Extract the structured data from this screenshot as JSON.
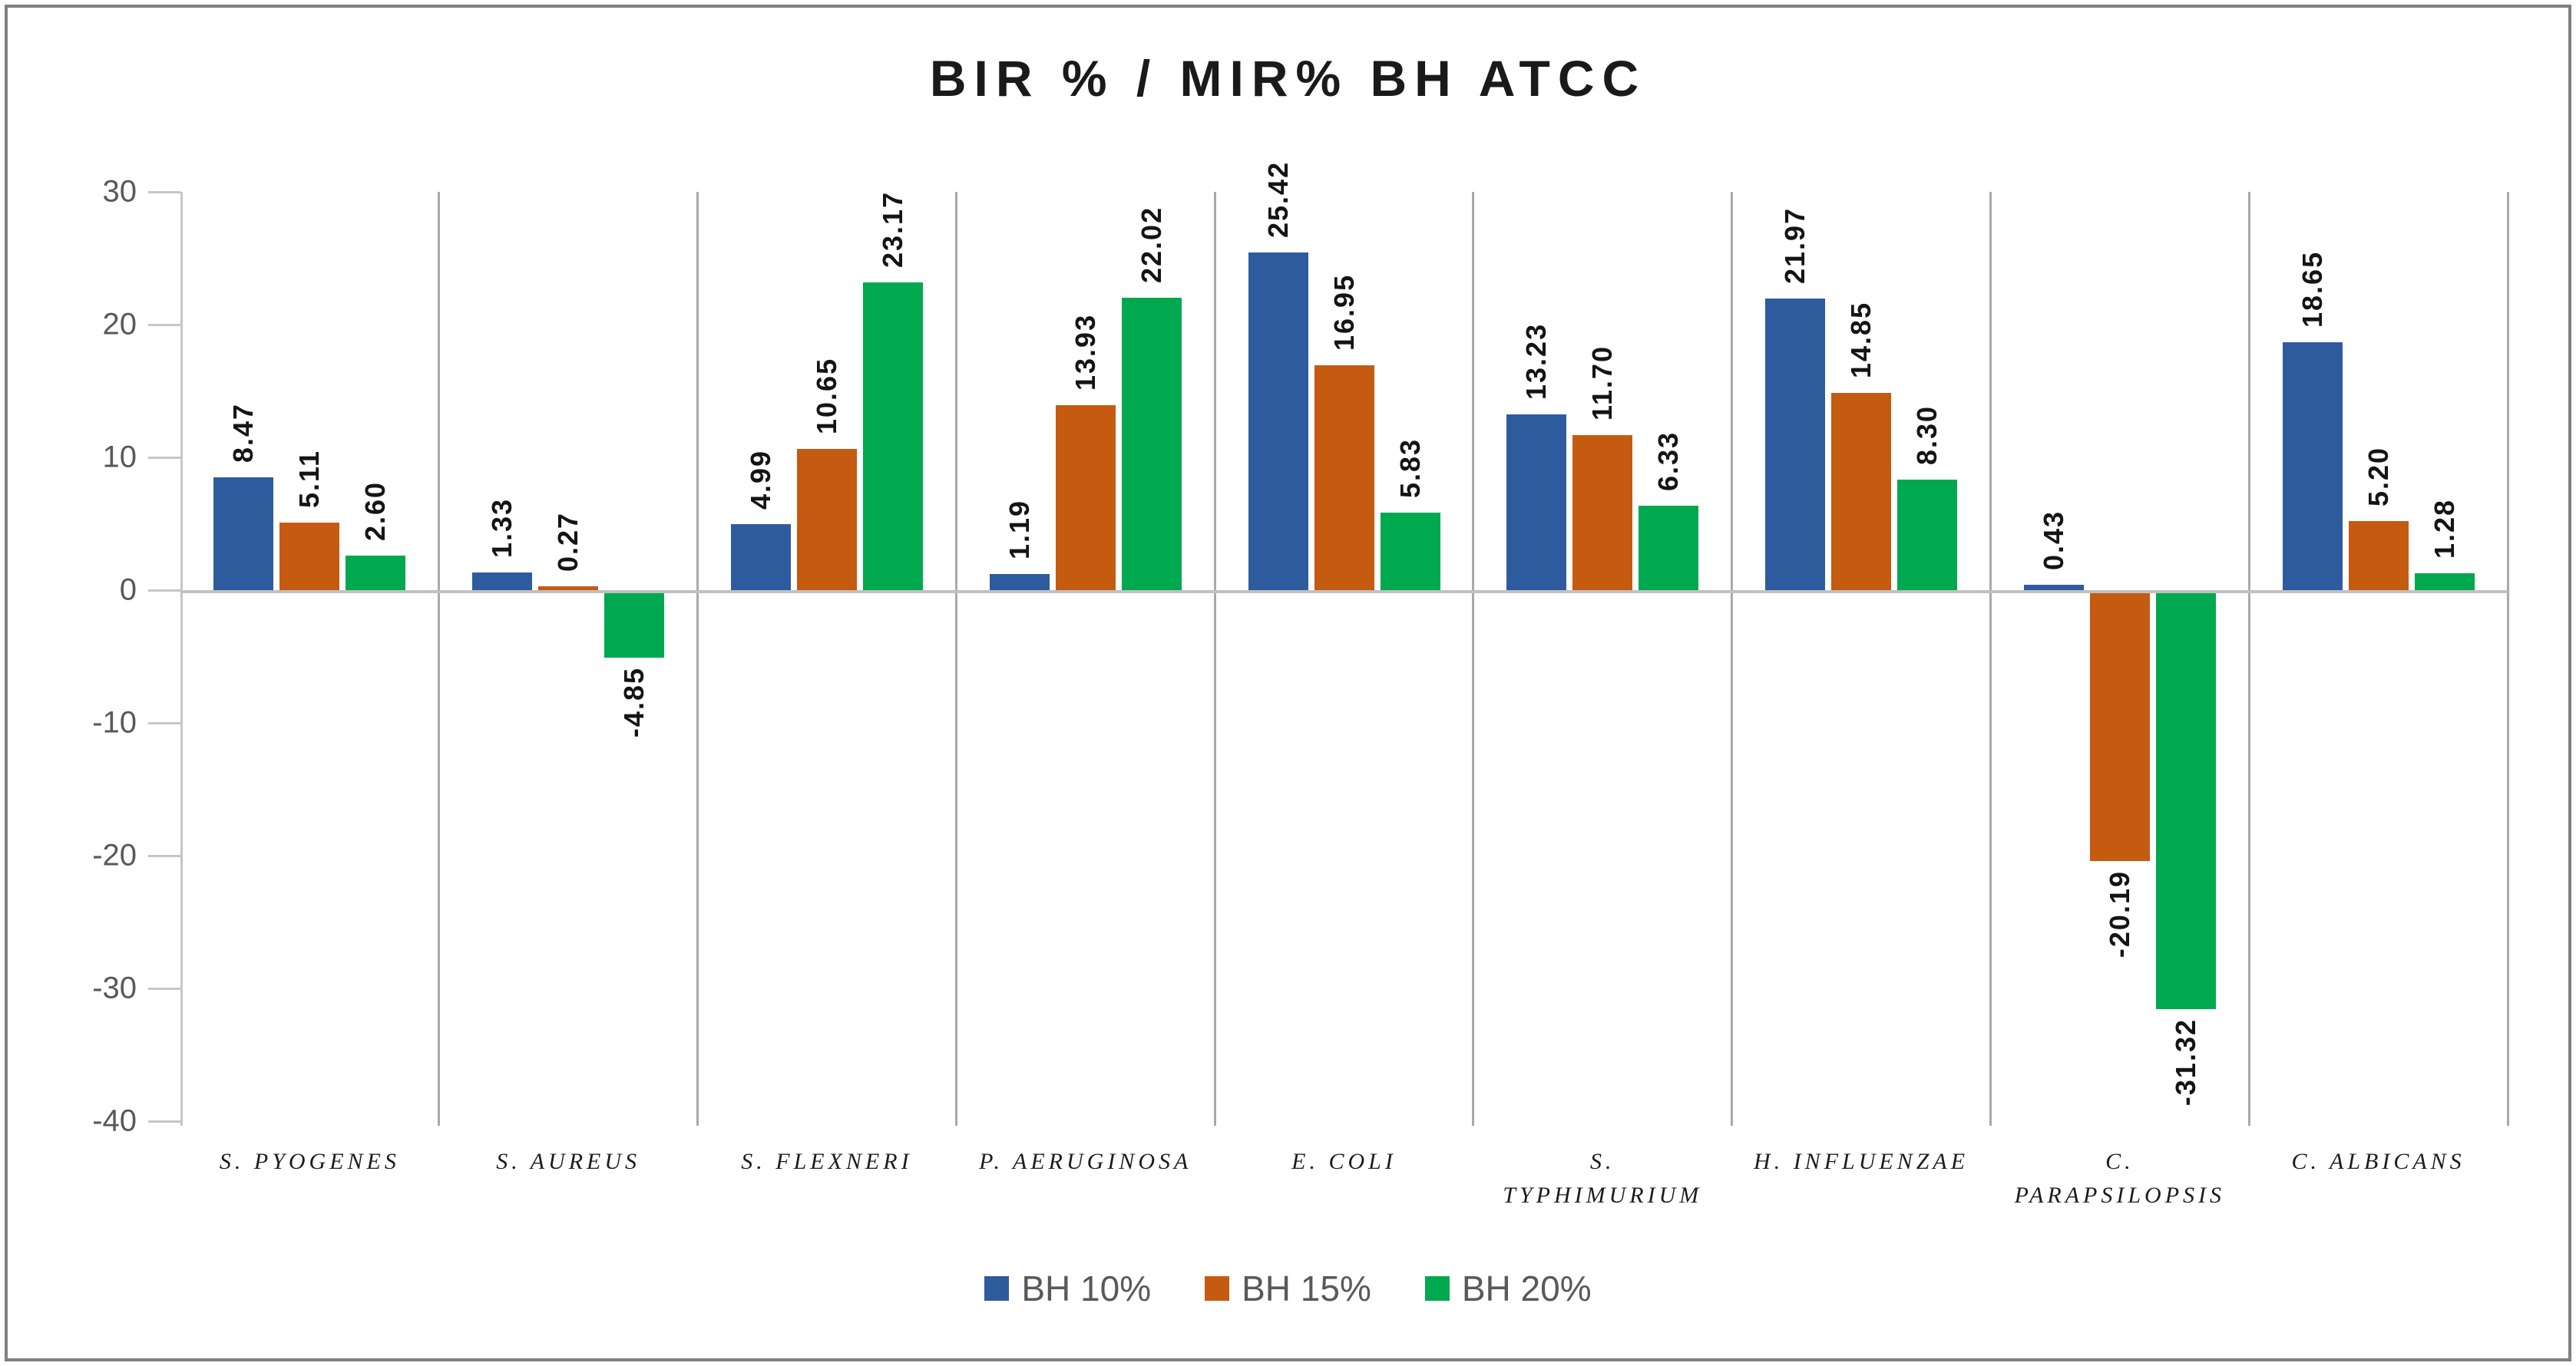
{
  "title": "BIR % / MIR% BH ATCC",
  "chart_data": {
    "type": "bar",
    "title": "BIR % / MIR% BH ATCC",
    "grid": "vertical-category-separators",
    "legend_position": "bottom",
    "categories": [
      {
        "label": "S. PYOGENES",
        "lines": [
          "S. PYOGENES"
        ]
      },
      {
        "label": "S. AUREUS",
        "lines": [
          "S. AUREUS"
        ]
      },
      {
        "label": "S. FLEXNERI",
        "lines": [
          "S. FLEXNERI"
        ]
      },
      {
        "label": "P. AERUGINOSA",
        "lines": [
          "P. AERUGINOSA"
        ]
      },
      {
        "label": "E. COLI",
        "lines": [
          "E. COLI"
        ]
      },
      {
        "label": "S. TYPHIMURIUM",
        "lines": [
          "S.",
          "TYPHIMURIUM"
        ]
      },
      {
        "label": "H. INFLUENZAE",
        "lines": [
          "H. INFLUENZAE"
        ]
      },
      {
        "label": "C. PARAPSILOPSIS",
        "lines": [
          "C.",
          "PARAPSILOPSIS"
        ]
      },
      {
        "label": "C. ALBICANS",
        "lines": [
          "C. ALBICANS"
        ]
      }
    ],
    "series": [
      {
        "name": "BH 10%",
        "color": "#2E5B9E",
        "values": [
          8.47,
          1.33,
          4.99,
          1.19,
          25.42,
          13.23,
          21.97,
          0.43,
          18.65
        ],
        "labels": [
          "8.47",
          "1.33",
          "4.99",
          "1.19",
          "25.42",
          "13.23",
          "21.97",
          "0.43",
          "18.65"
        ]
      },
      {
        "name": "BH 15%",
        "color": "#C55A11",
        "values": [
          5.11,
          0.27,
          10.65,
          13.93,
          16.95,
          11.7,
          14.85,
          -20.19,
          5.2
        ],
        "labels": [
          "5.11",
          "0.27",
          "10.65",
          "13.93",
          "16.95",
          "11.70",
          "14.85",
          "-20.19",
          "5.20"
        ]
      },
      {
        "name": "BH 20%",
        "color": "#00A84F",
        "values": [
          2.6,
          -4.85,
          23.17,
          22.02,
          5.83,
          6.33,
          8.3,
          -31.32,
          1.28
        ],
        "labels": [
          "2.60",
          "-4.85",
          "23.17",
          "22.02",
          "5.83",
          "6.33",
          "8.30",
          "-31.32",
          "1.28"
        ]
      }
    ],
    "y_axis": {
      "min": -40,
      "max": 30,
      "step": 10,
      "tick_labels": [
        "30",
        "20",
        "10",
        "0",
        "-10",
        "-20",
        "-30",
        "-40"
      ]
    },
    "ui_colors": {
      "axis_line": "#C6C6C6",
      "category_separator": "#A9A9A9",
      "zero_line": "#C1C1C1",
      "tick_text": "#595959",
      "data_label_text": "#141414",
      "title_text": "#1A1A1A",
      "legend_text": "#595959",
      "frame_border": "#7F7F7F"
    }
  },
  "legend": {
    "items": [
      {
        "label": "BH 10%",
        "color": "#2E5B9E"
      },
      {
        "label": "BH 15%",
        "color": "#C55A11"
      },
      {
        "label": "BH 20%",
        "color": "#00A84F"
      }
    ]
  }
}
